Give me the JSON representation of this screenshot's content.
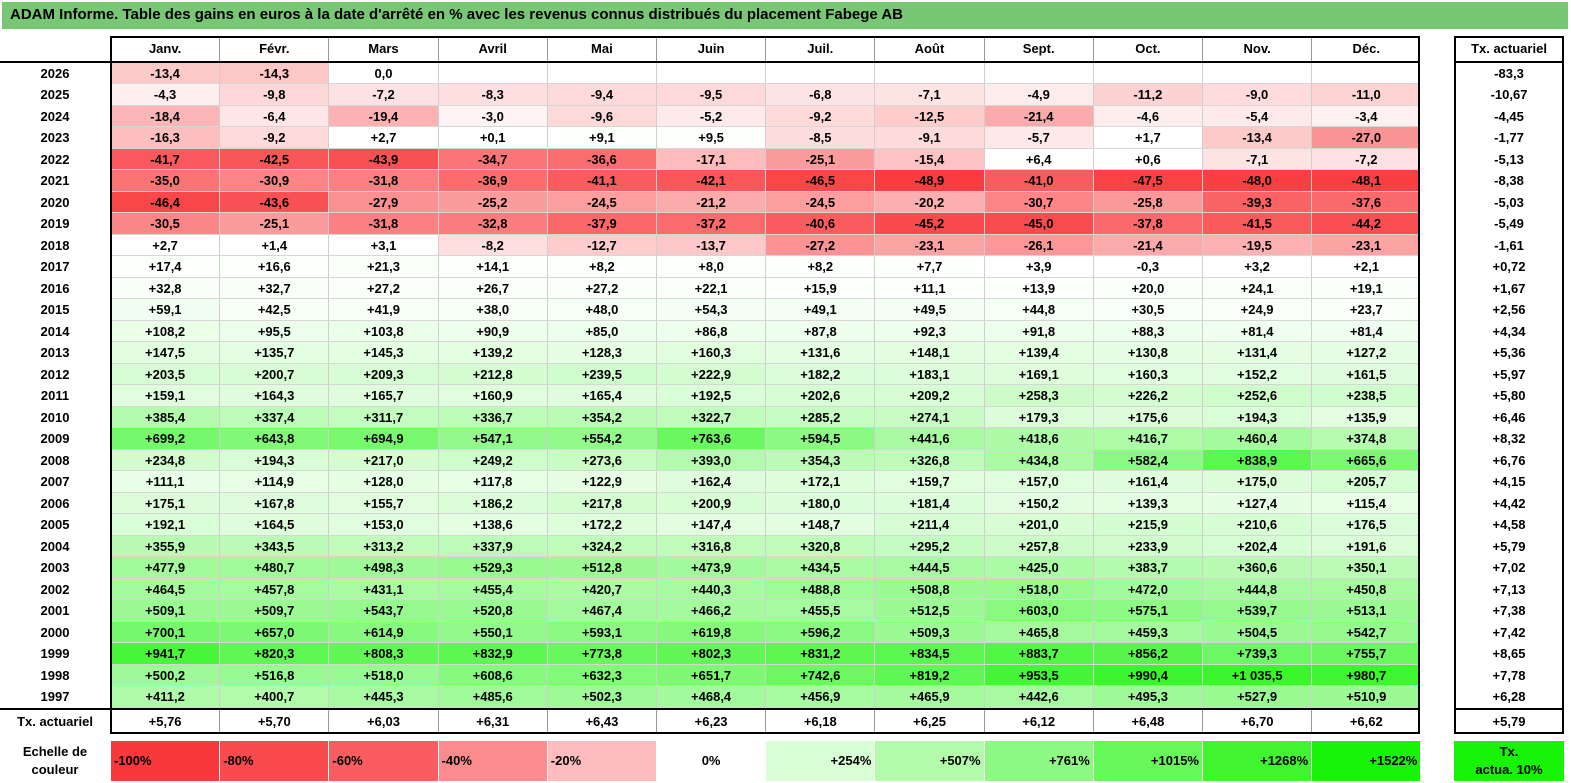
{
  "title": "ADAM Informe. Table des gains en euros à la date d'arrêté en % avec les revenus connus distribués du placement Fabege AB",
  "months": [
    "Janv.",
    "Févr.",
    "Mars",
    "Avril",
    "Mai",
    "Juin",
    "Juil.",
    "Août",
    "Sept.",
    "Oct.",
    "Nov.",
    "Déc."
  ],
  "rate_header": "Tx. actuariel",
  "rows": [
    {
      "year": "2026",
      "values": [
        "-13,4",
        "-14,3",
        "0,0",
        "",
        "",
        "",
        "",
        "",
        "",
        "",
        "",
        ""
      ],
      "rate": "-83,3"
    },
    {
      "year": "2025",
      "values": [
        "-4,3",
        "-9,8",
        "-7,2",
        "-8,3",
        "-9,4",
        "-9,5",
        "-6,8",
        "-7,1",
        "-4,9",
        "-11,2",
        "-9,0",
        "-11,0"
      ],
      "rate": "-10,67"
    },
    {
      "year": "2024",
      "values": [
        "-18,4",
        "-6,4",
        "-19,4",
        "-3,0",
        "-9,6",
        "-5,2",
        "-9,2",
        "-12,5",
        "-21,4",
        "-4,6",
        "-5,4",
        "-3,4"
      ],
      "rate": "-4,45"
    },
    {
      "year": "2023",
      "values": [
        "-16,3",
        "-9,2",
        "+2,7",
        "+0,1",
        "+9,1",
        "+9,5",
        "-8,5",
        "-9,1",
        "-5,7",
        "+1,7",
        "-13,4",
        "-27,0"
      ],
      "rate": "-1,77"
    },
    {
      "year": "2022",
      "values": [
        "-41,7",
        "-42,5",
        "-43,9",
        "-34,7",
        "-36,6",
        "-17,1",
        "-25,1",
        "-15,4",
        "+6,4",
        "+0,6",
        "-7,1",
        "-7,2"
      ],
      "rate": "-5,13"
    },
    {
      "year": "2021",
      "values": [
        "-35,0",
        "-30,9",
        "-31,8",
        "-36,9",
        "-41,1",
        "-42,1",
        "-46,5",
        "-48,9",
        "-41,0",
        "-47,5",
        "-48,0",
        "-48,1"
      ],
      "rate": "-8,38"
    },
    {
      "year": "2020",
      "values": [
        "-46,4",
        "-43,6",
        "-27,9",
        "-25,2",
        "-24,5",
        "-21,2",
        "-24,5",
        "-20,2",
        "-30,7",
        "-25,8",
        "-39,3",
        "-37,6"
      ],
      "rate": "-5,03"
    },
    {
      "year": "2019",
      "values": [
        "-30,5",
        "-25,1",
        "-31,8",
        "-32,8",
        "-37,9",
        "-37,2",
        "-40,6",
        "-45,2",
        "-45,0",
        "-37,8",
        "-41,5",
        "-44,2"
      ],
      "rate": "-5,49"
    },
    {
      "year": "2018",
      "values": [
        "+2,7",
        "+1,4",
        "+3,1",
        "-8,2",
        "-12,7",
        "-13,7",
        "-27,2",
        "-23,1",
        "-26,1",
        "-21,4",
        "-19,5",
        "-23,1"
      ],
      "rate": "-1,61"
    },
    {
      "year": "2017",
      "values": [
        "+17,4",
        "+16,6",
        "+21,3",
        "+14,1",
        "+8,2",
        "+8,0",
        "+8,2",
        "+7,7",
        "+3,9",
        "-0,3",
        "+3,2",
        "+2,1"
      ],
      "rate": "+0,72"
    },
    {
      "year": "2016",
      "values": [
        "+32,8",
        "+32,7",
        "+27,2",
        "+26,7",
        "+27,2",
        "+22,1",
        "+15,9",
        "+11,1",
        "+13,9",
        "+20,0",
        "+24,1",
        "+19,1"
      ],
      "rate": "+1,67"
    },
    {
      "year": "2015",
      "values": [
        "+59,1",
        "+42,5",
        "+41,9",
        "+38,0",
        "+48,0",
        "+54,3",
        "+49,1",
        "+49,5",
        "+44,8",
        "+30,5",
        "+24,9",
        "+23,7"
      ],
      "rate": "+2,56"
    },
    {
      "year": "2014",
      "values": [
        "+108,2",
        "+95,5",
        "+103,8",
        "+90,9",
        "+85,0",
        "+86,8",
        "+87,8",
        "+92,3",
        "+91,8",
        "+88,3",
        "+81,4",
        "+81,4"
      ],
      "rate": "+4,34"
    },
    {
      "year": "2013",
      "values": [
        "+147,5",
        "+135,7",
        "+145,3",
        "+139,2",
        "+128,3",
        "+160,3",
        "+131,6",
        "+148,1",
        "+139,4",
        "+130,8",
        "+131,4",
        "+127,2"
      ],
      "rate": "+5,36"
    },
    {
      "year": "2012",
      "values": [
        "+203,5",
        "+200,7",
        "+209,3",
        "+212,8",
        "+239,5",
        "+222,9",
        "+182,2",
        "+183,1",
        "+169,1",
        "+160,3",
        "+152,2",
        "+161,5"
      ],
      "rate": "+5,97"
    },
    {
      "year": "2011",
      "values": [
        "+159,1",
        "+164,3",
        "+165,7",
        "+160,9",
        "+165,4",
        "+192,5",
        "+202,6",
        "+209,2",
        "+258,3",
        "+226,2",
        "+252,6",
        "+238,5"
      ],
      "rate": "+5,80"
    },
    {
      "year": "2010",
      "values": [
        "+385,4",
        "+337,4",
        "+311,7",
        "+336,7",
        "+354,2",
        "+322,7",
        "+285,2",
        "+274,1",
        "+179,3",
        "+175,6",
        "+194,3",
        "+135,9"
      ],
      "rate": "+6,46"
    },
    {
      "year": "2009",
      "values": [
        "+699,2",
        "+643,8",
        "+694,9",
        "+547,1",
        "+554,2",
        "+763,6",
        "+594,5",
        "+441,6",
        "+418,6",
        "+416,7",
        "+460,4",
        "+374,8"
      ],
      "rate": "+8,32"
    },
    {
      "year": "2008",
      "values": [
        "+234,8",
        "+194,3",
        "+217,0",
        "+249,2",
        "+273,6",
        "+393,0",
        "+354,3",
        "+326,8",
        "+434,8",
        "+582,4",
        "+838,9",
        "+665,6"
      ],
      "rate": "+6,76"
    },
    {
      "year": "2007",
      "values": [
        "+111,1",
        "+114,9",
        "+128,0",
        "+117,8",
        "+122,9",
        "+162,4",
        "+172,1",
        "+159,7",
        "+157,0",
        "+161,4",
        "+175,0",
        "+205,7"
      ],
      "rate": "+4,15"
    },
    {
      "year": "2006",
      "values": [
        "+175,1",
        "+167,8",
        "+155,7",
        "+186,2",
        "+217,8",
        "+200,9",
        "+180,0",
        "+181,4",
        "+150,2",
        "+139,3",
        "+127,4",
        "+115,4"
      ],
      "rate": "+4,42"
    },
    {
      "year": "2005",
      "values": [
        "+192,1",
        "+164,5",
        "+153,0",
        "+138,6",
        "+172,2",
        "+147,4",
        "+148,7",
        "+211,4",
        "+201,0",
        "+215,9",
        "+210,6",
        "+176,5"
      ],
      "rate": "+4,58"
    },
    {
      "year": "2004",
      "values": [
        "+355,9",
        "+343,5",
        "+313,2",
        "+337,9",
        "+324,2",
        "+316,8",
        "+320,8",
        "+295,2",
        "+257,8",
        "+233,9",
        "+202,4",
        "+191,6"
      ],
      "rate": "+5,79"
    },
    {
      "year": "2003",
      "values": [
        "+477,9",
        "+480,7",
        "+498,3",
        "+529,3",
        "+512,8",
        "+473,9",
        "+434,5",
        "+444,5",
        "+425,0",
        "+383,7",
        "+360,6",
        "+350,1"
      ],
      "rate": "+7,02"
    },
    {
      "year": "2002",
      "values": [
        "+464,5",
        "+457,8",
        "+431,1",
        "+455,4",
        "+420,7",
        "+440,3",
        "+488,8",
        "+508,8",
        "+518,0",
        "+472,0",
        "+444,8",
        "+450,8"
      ],
      "rate": "+7,13"
    },
    {
      "year": "2001",
      "values": [
        "+509,1",
        "+509,7",
        "+543,7",
        "+520,8",
        "+467,4",
        "+466,2",
        "+455,5",
        "+512,5",
        "+603,0",
        "+575,1",
        "+539,7",
        "+513,1"
      ],
      "rate": "+7,38"
    },
    {
      "year": "2000",
      "values": [
        "+700,1",
        "+657,0",
        "+614,9",
        "+550,1",
        "+593,1",
        "+619,8",
        "+596,2",
        "+509,3",
        "+465,8",
        "+459,3",
        "+504,5",
        "+542,7"
      ],
      "rate": "+7,42"
    },
    {
      "year": "1999",
      "values": [
        "+941,7",
        "+820,3",
        "+808,3",
        "+832,9",
        "+773,8",
        "+802,3",
        "+831,2",
        "+834,5",
        "+883,7",
        "+856,2",
        "+739,3",
        "+755,7"
      ],
      "rate": "+8,65"
    },
    {
      "year": "1998",
      "values": [
        "+500,2",
        "+516,8",
        "+518,0",
        "+608,6",
        "+632,3",
        "+651,7",
        "+742,6",
        "+819,2",
        "+953,5",
        "+990,4",
        "+1 035,5",
        "+980,7"
      ],
      "rate": "+7,78"
    },
    {
      "year": "1997",
      "values": [
        "+411,2",
        "+400,7",
        "+445,3",
        "+485,6",
        "+502,3",
        "+468,4",
        "+456,9",
        "+465,9",
        "+442,6",
        "+495,3",
        "+527,9",
        "+510,9"
      ],
      "rate": "+6,28"
    }
  ],
  "footer": {
    "label": "Tx. actuariel",
    "values": [
      "+5,76",
      "+5,70",
      "+6,03",
      "+6,31",
      "+6,43",
      "+6,23",
      "+6,18",
      "+6,25",
      "+6,12",
      "+6,48",
      "+6,70",
      "+6,62"
    ],
    "rate": "+5,79"
  },
  "legend": {
    "label_line1": "Echelle de",
    "label_line2": "couleur",
    "steps": [
      {
        "text": "-100%",
        "color": "#f8383b"
      },
      {
        "text": "-80%",
        "color": "#f94a4d"
      },
      {
        "text": "-60%",
        "color": "#fa5d60"
      },
      {
        "text": "-40%",
        "color": "#fc8b8d"
      },
      {
        "text": "-20%",
        "color": "#fdbcbe"
      },
      {
        "text": "0%",
        "color": "#ffffff"
      },
      {
        "text": "+254%",
        "color": "#d9fdd5"
      },
      {
        "text": "+507%",
        "color": "#b3fbab"
      },
      {
        "text": "+761%",
        "color": "#8cf982"
      },
      {
        "text": "+1015%",
        "color": "#66f758"
      },
      {
        "text": "+1268%",
        "color": "#40f530"
      },
      {
        "text": "+1522%",
        "color": "#19f308"
      }
    ],
    "rate_line1": "Tx.",
    "rate_line2": "actua. 10%",
    "rate_color": "#19f308"
  },
  "colors": {
    "title_bg": "#77c775",
    "negative_max": "#f8383b",
    "positive_max": "#19f308"
  }
}
